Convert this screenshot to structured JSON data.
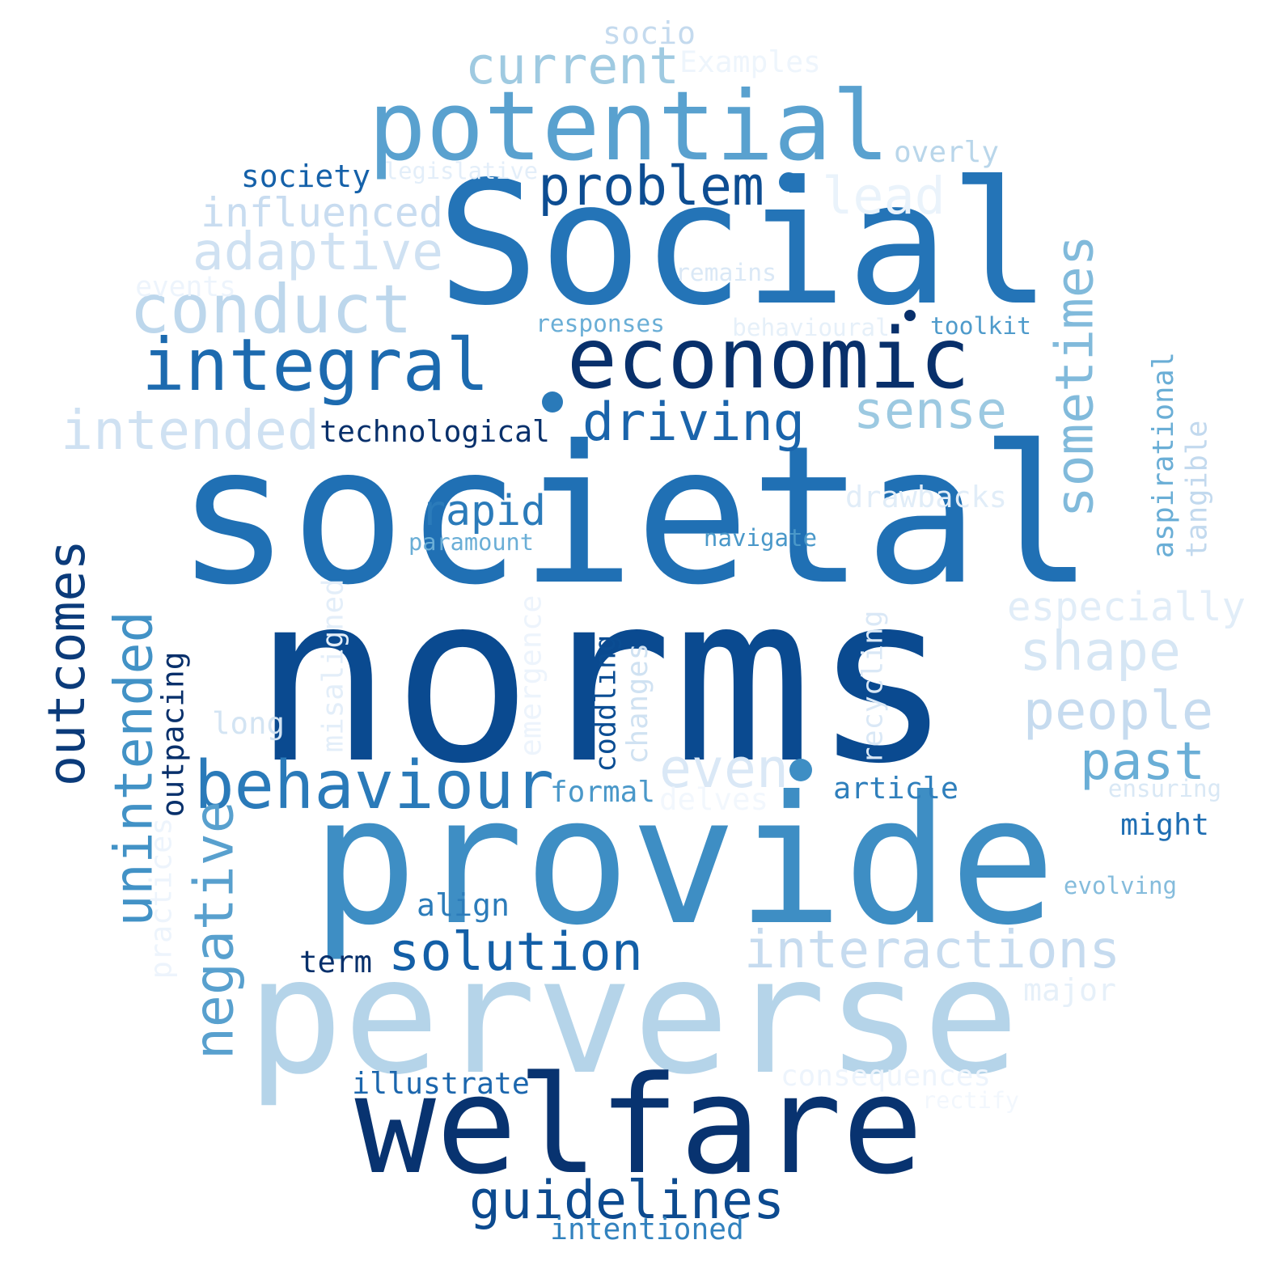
{
  "words": [
    {
      "text": "societal",
      "color": "#2070b4"
    },
    {
      "text": "norms",
      "color": "#0a4a90"
    },
    {
      "text": "Social",
      "color": "#2474b7"
    },
    {
      "text": "provide",
      "color": "#3e8ec4"
    },
    {
      "text": "perverse",
      "color": "#b5d4e9"
    },
    {
      "text": "welfare",
      "color": "#083370"
    },
    {
      "text": "potential",
      "color": "#59a1cf"
    },
    {
      "text": "economic",
      "color": "#08306b"
    },
    {
      "text": "integral",
      "color": "#1c6aaf"
    },
    {
      "text": "conduct",
      "color": "#bdd7ec"
    },
    {
      "text": "current",
      "color": "#9fcae1"
    },
    {
      "text": "problem",
      "color": "#0d4d92"
    },
    {
      "text": "lead",
      "color": "#eaf3fb"
    },
    {
      "text": "influenced",
      "color": "#c8dcf0"
    },
    {
      "text": "adaptive",
      "color": "#cfe1f2"
    },
    {
      "text": "driving",
      "color": "#1a64ab"
    },
    {
      "text": "sense",
      "color": "#9cc9e1"
    },
    {
      "text": "sometimes",
      "color": "#81badb"
    },
    {
      "text": "intended",
      "color": "#cfe1f2"
    },
    {
      "text": "technological",
      "color": "#08306b"
    },
    {
      "text": "behaviour",
      "color": "#2a7ab9"
    },
    {
      "text": "outcomes",
      "color": "#0b3b7a"
    },
    {
      "text": "unintended",
      "color": "#4292c6"
    },
    {
      "text": "negative",
      "color": "#58a0ce"
    },
    {
      "text": "rapid",
      "color": "#2b7bba"
    },
    {
      "text": "solution",
      "color": "#135fa7"
    },
    {
      "text": "interactions",
      "color": "#c6dbef"
    },
    {
      "text": "guidelines",
      "color": "#0c4a8f"
    },
    {
      "text": "shape",
      "color": "#d6e6f4"
    },
    {
      "text": "people",
      "color": "#c6dbef"
    },
    {
      "text": "past",
      "color": "#6aaed6"
    },
    {
      "text": "even",
      "color": "#dae8f6"
    },
    {
      "text": "especially",
      "color": "#e1edf8"
    },
    {
      "text": "socio",
      "color": "#c4daee"
    },
    {
      "text": "Examples",
      "color": "#eef5fc"
    },
    {
      "text": "society",
      "color": "#1561a9"
    },
    {
      "text": "legislative",
      "color": "#e3eef9"
    },
    {
      "text": "overly",
      "color": "#b9d6ea"
    },
    {
      "text": "events",
      "color": "#edf4fc"
    },
    {
      "text": "remains",
      "color": "#dae8f6"
    },
    {
      "text": "responses",
      "color": "#6aaed6"
    },
    {
      "text": "behavioural",
      "color": "#e6f0f9"
    },
    {
      "text": "toolkit",
      "color": "#4f9bcb"
    },
    {
      "text": "aspirational",
      "color": "#6aaed6"
    },
    {
      "text": "tangible",
      "color": "#c2d9ee"
    },
    {
      "text": "drawbacks",
      "color": "#e1edf8"
    },
    {
      "text": "paramount",
      "color": "#6aaed6"
    },
    {
      "text": "navigate",
      "color": "#4a98c9"
    },
    {
      "text": "misaligned",
      "color": "#e3eef9"
    },
    {
      "text": "emergence",
      "color": "#edf4fc"
    },
    {
      "text": "recycling",
      "color": "#dae8f6"
    },
    {
      "text": "outpacing",
      "color": "#08306b"
    },
    {
      "text": "coddling",
      "color": "#0b4d93"
    },
    {
      "text": "changes",
      "color": "#d0e2f2"
    },
    {
      "text": "long",
      "color": "#d3e4f3"
    },
    {
      "text": "formal",
      "color": "#4a98c9"
    },
    {
      "text": "article",
      "color": "#2f7fbc"
    },
    {
      "text": "ensuring",
      "color": "#d9e8f5"
    },
    {
      "text": "delves",
      "color": "#f2f7fd"
    },
    {
      "text": "might",
      "color": "#1f6eb3"
    },
    {
      "text": "evolving",
      "color": "#85bcdc"
    },
    {
      "text": "practices",
      "color": "#edf4fc"
    },
    {
      "text": "align",
      "color": "#2c7cba"
    },
    {
      "text": "term",
      "color": "#08306b"
    },
    {
      "text": "major",
      "color": "#e6f0f9"
    },
    {
      "text": "illustrate",
      "color": "#1b66ad"
    },
    {
      "text": "consequences",
      "color": "#edf4fc"
    },
    {
      "text": "rectify",
      "color": "#f2f7fd"
    },
    {
      "text": "intentioned",
      "color": "#3282be"
    }
  ],
  "dots": [
    {
      "color": "#2474b7"
    },
    {
      "color": "#2a7ab9"
    },
    {
      "color": "#3e8ec4"
    },
    {
      "color": "#08306b"
    }
  ]
}
